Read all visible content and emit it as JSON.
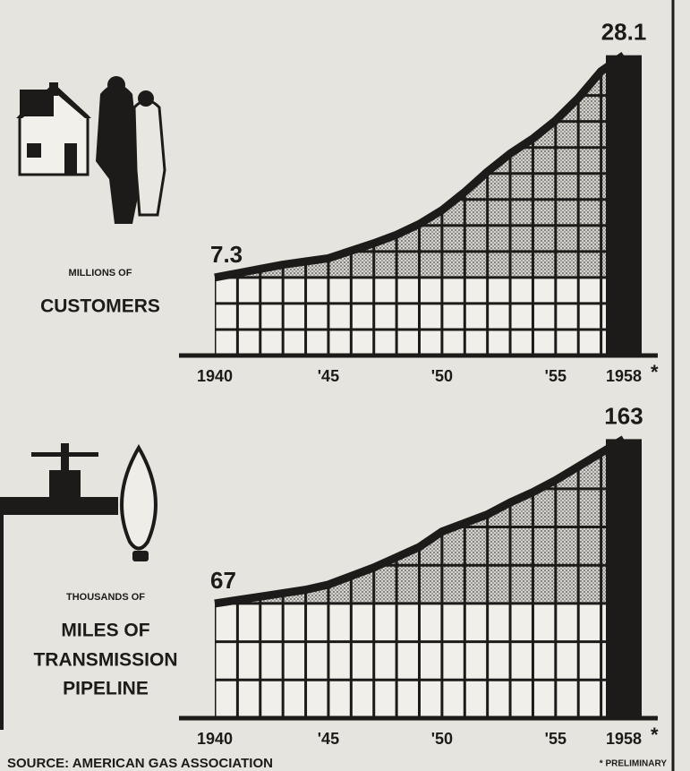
{
  "chart_data": [
    {
      "type": "area",
      "unit_label": [
        "MILLIONS OF",
        "CUSTOMERS"
      ],
      "x": [
        1940,
        1941,
        1942,
        1943,
        1944,
        1945,
        1946,
        1947,
        1948,
        1949,
        1950,
        1951,
        1952,
        1953,
        1954,
        1955,
        1956,
        1957,
        1958
      ],
      "values": [
        7.3,
        7.7,
        8.1,
        8.5,
        8.8,
        9.1,
        9.8,
        10.5,
        11.3,
        12.3,
        13.6,
        15.3,
        17.2,
        18.9,
        20.3,
        22.0,
        24.1,
        26.6,
        28.1
      ],
      "xlim": [
        1940,
        1958
      ],
      "ylim": [
        0,
        30
      ],
      "xticks": [
        {
          "value": 1940,
          "label": "1940"
        },
        {
          "value": 1945,
          "label": "'45"
        },
        {
          "value": 1950,
          "label": "'50"
        },
        {
          "value": 1955,
          "label": "'55"
        },
        {
          "value": 1958,
          "label": "1958"
        }
      ],
      "asterisk": "*",
      "color": "#1c1b19"
    },
    {
      "type": "area",
      "unit_label": [
        "THOUSANDS OF",
        "MILES OF",
        "TRANSMISSION",
        "PIPELINE"
      ],
      "x": [
        1940,
        1941,
        1942,
        1943,
        1944,
        1945,
        1946,
        1947,
        1948,
        1949,
        1950,
        1951,
        1952,
        1953,
        1954,
        1955,
        1956,
        1957,
        1958
      ],
      "values": [
        67,
        69,
        71,
        73,
        75,
        78,
        83,
        88,
        94,
        100,
        109,
        114,
        119,
        126,
        132,
        139,
        147,
        155,
        163
      ],
      "xlim": [
        1940,
        1958
      ],
      "ylim": [
        0,
        170
      ],
      "xticks": [
        {
          "value": 1940,
          "label": "1940"
        },
        {
          "value": 1945,
          "label": "'45"
        },
        {
          "value": 1950,
          "label": "'50"
        },
        {
          "value": 1955,
          "label": "'55"
        },
        {
          "value": 1958,
          "label": "1958"
        }
      ],
      "asterisk": "*",
      "color": "#1c1b19"
    }
  ],
  "footer": {
    "source": "SOURCE: AMERICAN GAS ASSOCIATION",
    "note": "* PRELIMINARY"
  }
}
